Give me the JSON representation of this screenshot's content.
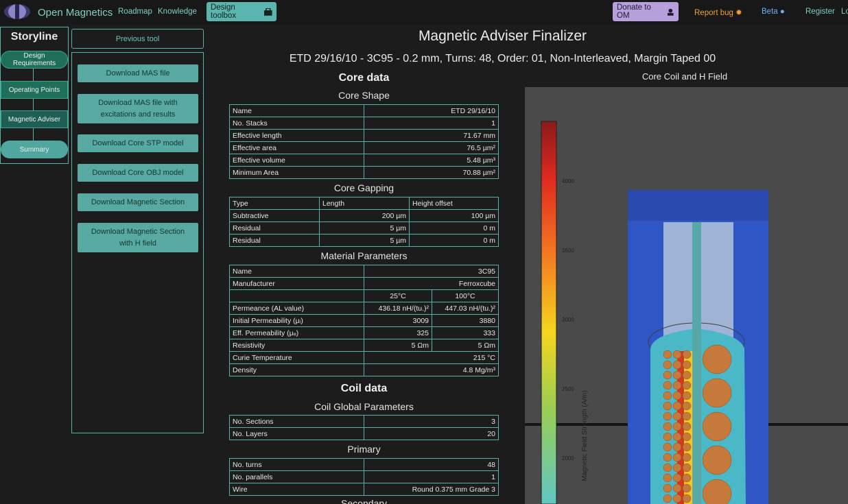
{
  "nav": {
    "brand": "Open Magnetics",
    "links": [
      "Roadmap",
      "Knowledge"
    ],
    "toolbox": "Design toolbox",
    "donate": "Donate to OM",
    "report": "Report bug",
    "beta": "Beta",
    "register": "Register",
    "login": "Lo"
  },
  "storyline": {
    "title": "Storyline",
    "items": [
      "Design Requirements",
      "Operating Points",
      "Magnetic Adviser",
      "Summary"
    ]
  },
  "tools": {
    "previous": "Previous tool",
    "buttons": [
      "Download MAS file",
      "Download MAS file with excitations and results",
      "Download Core STP model",
      "Download Core OBJ model",
      "Download Magnetic Section",
      "Download Magnetic Section with H field"
    ]
  },
  "main": {
    "title": "Magnetic Adviser Finalizer",
    "subtitle": "ETD 29/16/10 - 3C95 - 0.2 mm, Turns: 48, Order: 01, Non-Interleaved, Margin Taped 00",
    "core_data": "Core data",
    "core_shape": {
      "heading": "Core Shape",
      "rows": [
        [
          "Name",
          "ETD 29/16/10"
        ],
        [
          "No. Stacks",
          "1"
        ],
        [
          "Effective length",
          "71.67 mm"
        ],
        [
          "Effective area",
          "76.5 µm²"
        ],
        [
          "Effective volume",
          "5.48 µm³"
        ],
        [
          "Minimum Area",
          "70.88 µm²"
        ]
      ]
    },
    "core_gapping": {
      "heading": "Core Gapping",
      "header": [
        "Type",
        "Length",
        "Height offset"
      ],
      "rows": [
        [
          "Subtractive",
          "200 µm",
          "100 µm"
        ],
        [
          "Residual",
          "5 µm",
          "0 m"
        ],
        [
          "Residual",
          "5 µm",
          "0 m"
        ]
      ]
    },
    "material": {
      "heading": "Material Parameters",
      "rows2": [
        [
          "Name",
          "3C95"
        ],
        [
          "Manufacturer",
          "Ferroxcube"
        ]
      ],
      "temps": [
        "25°C",
        "100°C"
      ],
      "rows3": [
        [
          "Permeance (AL value)",
          "436.18 nH/(tu.)²",
          "447.03 nH/(tu.)²"
        ],
        [
          "Initial Permeability (μᵢ)",
          "3009",
          "3880"
        ],
        [
          "Eff. Permeability (μₑ)",
          "325",
          "333"
        ],
        [
          "Resistivity",
          "5 Ωm",
          "5 Ωm"
        ]
      ],
      "rows4": [
        [
          "Curie Temperature",
          "215 °C"
        ],
        [
          "Density",
          "4.8 Mg/m³"
        ]
      ]
    },
    "coil_data": "Coil data",
    "coil_global": {
      "heading": "Coil Global Parameters",
      "rows": [
        [
          "No. Sections",
          "3"
        ],
        [
          "No. Layers",
          "20"
        ]
      ]
    },
    "primary": {
      "heading": "Primary",
      "rows": [
        [
          "No. turns",
          "48"
        ],
        [
          "No. parallels",
          "1"
        ],
        [
          "Wire",
          "Round 0.375 mm Grade 3"
        ]
      ]
    },
    "secondary_heading": "Secondary"
  },
  "plot": {
    "title": "Core Coil and H Field",
    "colorbar_label": "Magnetic Field Strength (A/m)",
    "ticks": [
      "4000",
      "3500",
      "3000",
      "2500",
      "2000"
    ]
  },
  "colors": {
    "accent": "#5ab1aa",
    "toolbox_bg": "#59b5ad",
    "donate_bg": "#b79fdc",
    "report": "#f0a032",
    "beta": "#6fb0f0"
  },
  "icons": [
    "toolbox-icon",
    "donate-icon",
    "bug-icon",
    "github-icon",
    "logo-icon"
  ]
}
